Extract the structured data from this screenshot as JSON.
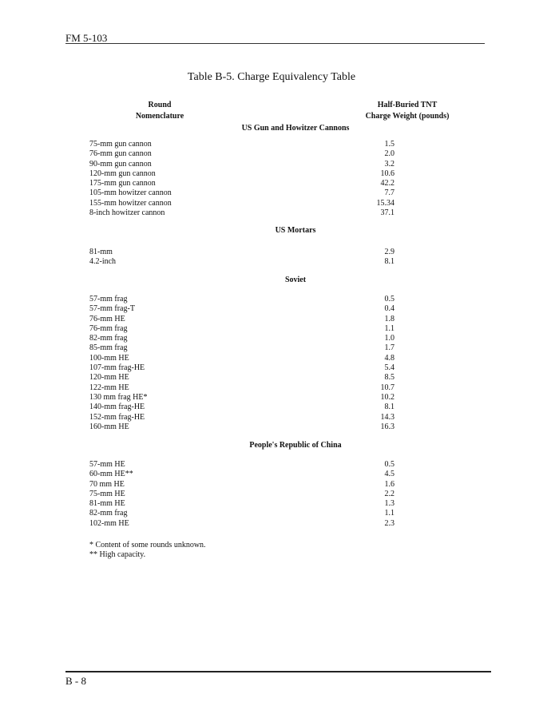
{
  "header": {
    "doc_id": "FM 5-103"
  },
  "title": "Table B-5. Charge Equivalency Table",
  "columns": {
    "round": [
      "Round",
      "Nomenclature"
    ],
    "charge": [
      "Half-Buried TNT",
      "Charge Weight (pounds)"
    ]
  },
  "sections": [
    {
      "title": "US Gun and Howitzer Cannons",
      "rows": [
        [
          "75-mm gun cannon",
          "1.5"
        ],
        [
          "76-mm gun cannon",
          "2.0"
        ],
        [
          "90-mm gun cannon",
          "3.2"
        ],
        [
          "120-mm gun cannon",
          "10.6"
        ],
        [
          "175-mm gun cannon",
          "42.2"
        ],
        [
          "105-mm howitzer cannon",
          "7.7"
        ],
        [
          "155-mm howitzer cannon",
          "15.34"
        ],
        [
          "8-inch howitzer cannon",
          "37.1"
        ]
      ]
    },
    {
      "title": "US Mortars",
      "rows": [
        [
          "81-mm",
          "2.9"
        ],
        [
          "4.2-inch",
          "8.1"
        ]
      ]
    },
    {
      "title": "Soviet",
      "rows": [
        [
          "57-mm frag",
          "0.5"
        ],
        [
          "57-mm frag-T",
          "0.4"
        ],
        [
          "76-mm HE",
          "1.8"
        ],
        [
          "76-mm frag",
          "1.1"
        ],
        [
          "82-mm frag",
          "1.0"
        ],
        [
          "85-mm frag",
          "1.7"
        ],
        [
          "100-mm HE",
          "4.8"
        ],
        [
          "107-mm frag-HE",
          "5.4"
        ],
        [
          "120-mm HE",
          "8.5"
        ],
        [
          "122-mm HE",
          "10.7"
        ],
        [
          "130 mm frag HE*",
          "10.2"
        ],
        [
          "140-mm frag-HE",
          "8.1"
        ],
        [
          "152-mm frag-HE",
          "14.3"
        ],
        [
          "160-mm HE",
          "16.3"
        ]
      ]
    },
    {
      "title": "People's Republic of China",
      "rows": [
        [
          "57-mm HE",
          "0.5"
        ],
        [
          "60-mm HE**",
          "4.5"
        ],
        [
          "70 mm HE",
          "1.6"
        ],
        [
          "75-mm HE",
          "2.2"
        ],
        [
          "81-mm HE",
          "1.3"
        ],
        [
          "82-mm frag",
          "1.1"
        ],
        [
          "102-mm HE",
          "2.3"
        ]
      ]
    }
  ],
  "footnotes": [
    "* Content of some rounds unknown.",
    "** High capacity."
  ],
  "footer": {
    "page": "B - 8"
  }
}
